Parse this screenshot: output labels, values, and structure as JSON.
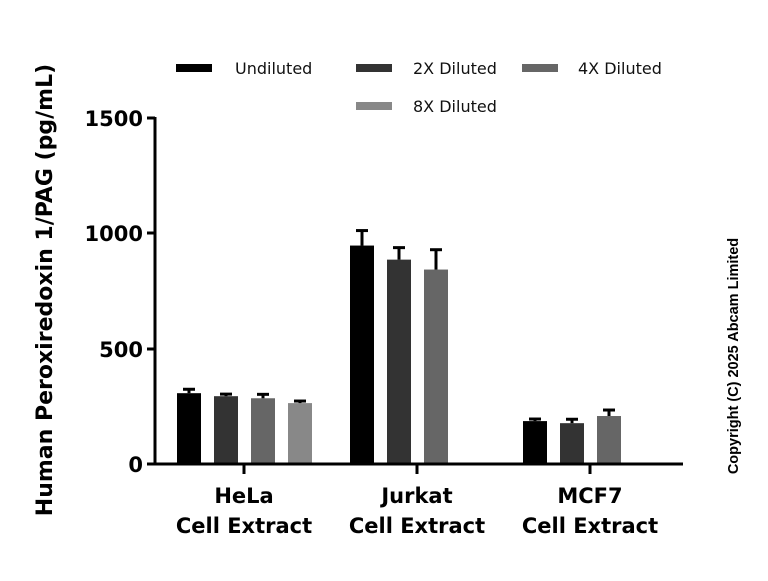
{
  "chart_data": {
    "type": "bar",
    "title": "",
    "xlabel": "",
    "ylabel": "Human Peroxiredoxin 1/PAG (pg/mL)",
    "ylim": [
      0,
      1500
    ],
    "yticks": [
      0,
      500,
      1000,
      1500
    ],
    "grid": false,
    "legend_position": "top",
    "categories": [
      "HeLa Cell Extract",
      "Jurkat Cell Extract",
      "MCF7 Cell Extract"
    ],
    "category_lines": [
      [
        "HeLa",
        "Cell Extract"
      ],
      [
        "Jurkat",
        "Cell Extract"
      ],
      [
        "MCF7",
        "Cell Extract"
      ]
    ],
    "series": [
      {
        "name": "Undiluted",
        "color": "#000000",
        "values": [
          307,
          947,
          186
        ],
        "errors": [
          17,
          65,
          9
        ]
      },
      {
        "name": "2X Diluted",
        "color": "#333333",
        "values": [
          294,
          886,
          177
        ],
        "errors": [
          9,
          52,
          17
        ]
      },
      {
        "name": "4X Diluted",
        "color": "#666666",
        "values": [
          285,
          843,
          208
        ],
        "errors": [
          17,
          86,
          26
        ]
      },
      {
        "name": "8X Diluted",
        "color": "#888888",
        "values": [
          264,
          null,
          null
        ],
        "errors": [
          9,
          null,
          null
        ]
      }
    ],
    "annotations": [
      "Copyright (C) 2025 Abcam Limited"
    ]
  },
  "legend": {
    "items": [
      {
        "label": "Undiluted",
        "color": "#000000"
      },
      {
        "label": "2X Diluted",
        "color": "#333333"
      },
      {
        "label": "4X Diluted",
        "color": "#666666"
      },
      {
        "label": "8X Diluted",
        "color": "#888888"
      }
    ]
  },
  "axes": {
    "y_label": "Human Peroxiredoxin 1/PAG (pg/mL)",
    "y_ticks": [
      "0",
      "500",
      "1000",
      "1500"
    ]
  },
  "copyright": "Copyright (C) 2025 Abcam Limited"
}
